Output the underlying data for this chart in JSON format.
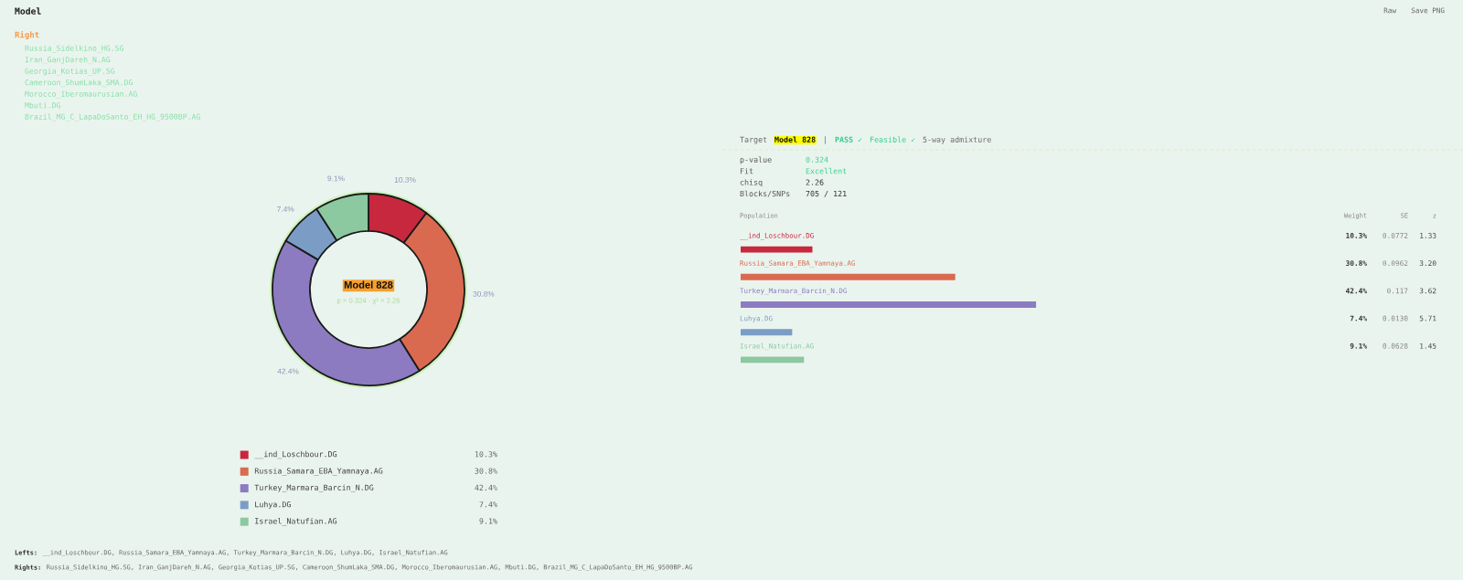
{
  "chart_data": [
    {
      "type": "other",
      "title": "Model",
      "annotations": [
        "Raw",
        "Save PNG"
      ]
    },
    {
      "type": "other",
      "title": "Right",
      "annotations": [
        "Russia_Sidelkino_HG.SG",
        "Iran_GanjDareh_N.AG",
        "Georgia_Kotias_UP.SG",
        "Cameroon_ShumLaka_SMA.DG",
        "Morocco_Iberomaurusian.AG",
        "Mbuti.DG",
        "Brazil_MG_C_LapaDoSanto_EH_HG_9500BP.AG"
      ]
    },
    {
      "type": "donut",
      "title": "Model 828",
      "subtitle": "p = 0.324 · χ² = 2.26",
      "categories": [
        "__ind_Loschbour.DG",
        "Russia_Samara_EBA_Yamnaya.AG",
        "Turkey_Marmara_Barcin_N.DG",
        "Luhya.DG",
        "Israel_Natufian.AG"
      ],
      "values": [
        10.3,
        30.8,
        42.4,
        7.4,
        9.1
      ],
      "colors": [
        "#c8283e",
        "#d96a50",
        "#8c7bc1",
        "#7b9dc5",
        "#8cc8a0"
      ],
      "value_labels": [
        "10.3%",
        "30.8%",
        "42.4%",
        "7.4%",
        "9.1%"
      ],
      "legend": "bottom"
    },
    {
      "type": "other",
      "annotations": [
        "Target",
        "Model 828",
        "|",
        "PASS ✓",
        "Feasible ✓",
        "5-way admixture",
        "p-value",
        "0.324",
        "Fit",
        "Excellent",
        "chisq",
        "2.26",
        "Blocks/SNPs",
        "705 / 121"
      ]
    },
    {
      "type": "bar",
      "orientation": "horizontal",
      "categories": [
        "__ind_Loschbour.DG",
        "Russia_Samara_EBA_Yamnaya.AG",
        "Turkey_Marmara_Barcin_N.DG",
        "Luhya.DG",
        "Israel_Natufian.AG"
      ],
      "values": [
        10.3,
        30.8,
        42.4,
        7.4,
        9.1
      ],
      "colors": [
        "#c8283e",
        "#d96a50",
        "#8c7bc1",
        "#7b9dc5",
        "#8cc8a0"
      ],
      "value_labels": [
        "10.3%",
        "30.8%",
        "42.4%",
        "7.4%",
        "9.1%"
      ],
      "tick_labels": "y",
      "annotations": [
        "Population",
        "Weight",
        "SE",
        "z",
        "0.0772",
        "1.33",
        "0.0962",
        "3.20",
        "0.117",
        "3.62",
        "0.0130",
        "5.71",
        "0.0628",
        "1.45"
      ]
    },
    {
      "type": "other",
      "annotations": [
        "Lefts:",
        "__ind_Loschbour.DG, Russia_Samara_EBA_Yamnaya.AG, Turkey_Marmara_Barcin_N.DG, Luhya.DG, Israel_Natufian.AG",
        "Rights:",
        "Russia_Sidelkino_HG.SG, Iran_GanjDareh_N.AG, Georgia_Kotias_UP.SG, Cameroon_ShumLaka_SMA.DG, Morocco_Iberomaurusian.AG, Mbuti.DG, Brazil_MG_C_LapaDoSanto_EH_HG_9500BP.AG"
      ]
    }
  ]
}
